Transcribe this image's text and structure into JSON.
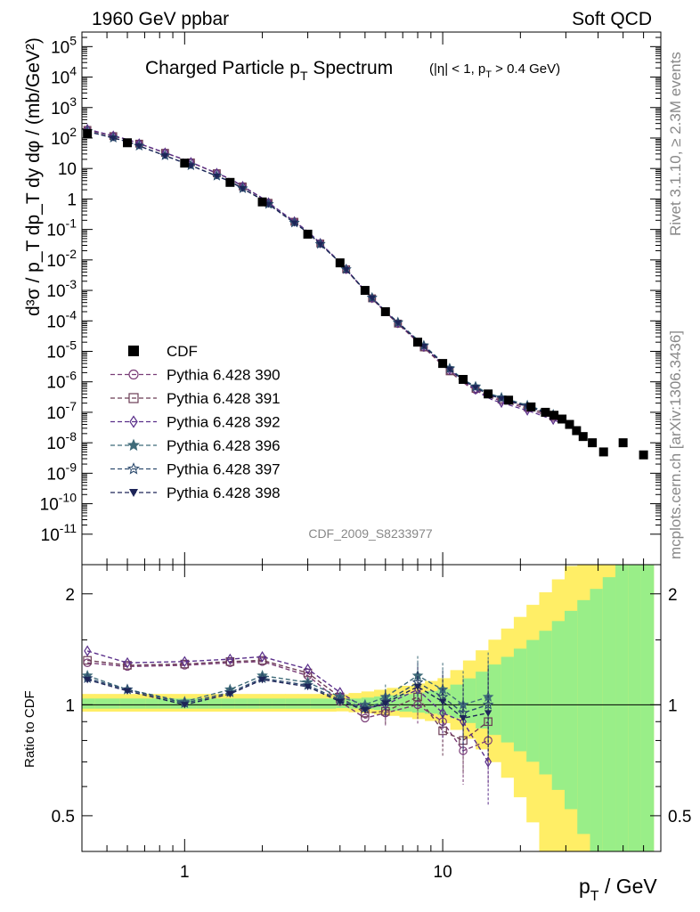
{
  "header": {
    "left": "1960 GeV ppbar",
    "right": "Soft QCD"
  },
  "side_labels": {
    "rivet": "Rivet 3.1.10, ≥ 2.3M events",
    "mcplots": "mcplots.cern.ch [arXiv:1306.3436]"
  },
  "plot_title": {
    "main": "Charged Particle p",
    "main_sub": "T",
    "main_tail": " Spectrum",
    "cut_a": "(|η| < 1, p",
    "cut_sub": "T",
    "cut_b": " > 0.4 GeV)"
  },
  "analysis_id": "CDF_2009_S8233977",
  "axes": {
    "ylabel_main": "d³σ / p_T dp_T dy dφ / (mb/GeV²)",
    "ylabel_ratio": "Ratio to CDF",
    "xlabel_a": "p",
    "xlabel_sub": "T",
    "xlabel_b": " / GeV"
  },
  "chart_data": [
    {
      "type": "scatter",
      "panel": "main",
      "x_scale": "log",
      "y_scale": "log",
      "xlim": [
        0.4,
        70
      ],
      "ylim": [
        1e-12,
        300000
      ],
      "x_ticklabels": [
        "1",
        "10"
      ],
      "y_ticklabels": [
        "10^-11",
        "10^-10",
        "10^-9",
        "10^-8",
        "10^-7",
        "10^-6",
        "10^-5",
        "10^-4",
        "10^-3",
        "10^-2",
        "10^-1",
        "1",
        "10",
        "10^2",
        "10^3",
        "10^4",
        "10^5"
      ],
      "legend_position": "bottom-left",
      "series": [
        {
          "name": "CDF",
          "color": "#000000",
          "marker": "filled-square",
          "x": [
            0.42,
            0.6,
            1.0,
            1.5,
            2.0,
            3.0,
            4.0,
            5.0,
            6.0,
            8.0,
            10.0,
            12.0,
            15.0,
            18.0,
            22.0,
            25.0,
            27.0,
            29.0,
            31.0,
            33.0,
            35.0,
            38.0,
            42.0,
            50.0,
            60.0
          ],
          "y": [
            140,
            70,
            15,
            3.5,
            0.8,
            0.07,
            0.008,
            0.001,
            0.0002,
            2e-05,
            4e-06,
            1.2e-06,
            4e-07,
            2.5e-07,
            1.5e-07,
            1e-07,
            8e-08,
            6e-08,
            4e-08,
            2.5e-08,
            1.6e-08,
            1e-08,
            5e-09,
            1e-08,
            4e-09
          ]
        },
        {
          "name": "Pythia 6.428 390",
          "color": "#7a3d77",
          "marker": "open-circle"
        },
        {
          "name": "Pythia 6.428 391",
          "color": "#6b3c55",
          "marker": "open-square"
        },
        {
          "name": "Pythia 6.428 392",
          "color": "#5a2f8a",
          "marker": "open-diamond"
        },
        {
          "name": "Pythia 6.428 396",
          "color": "#3f6b79",
          "marker": "filled-star"
        },
        {
          "name": "Pythia 6.428 397",
          "color": "#2e4c6f",
          "marker": "open-star"
        },
        {
          "name": "Pythia 6.428 398",
          "color": "#1d2458",
          "marker": "filled-triangle-down"
        }
      ]
    },
    {
      "type": "line",
      "panel": "ratio",
      "x_scale": "log",
      "y_scale": "log",
      "xlim": [
        0.4,
        70
      ],
      "ylim": [
        0.4,
        2.4
      ],
      "x_ticklabels": [
        "1",
        "10"
      ],
      "y_ticklabels": [
        "0.5",
        "1",
        "2"
      ],
      "reference_line": 1,
      "band_colors": {
        "inner": "#99ee88",
        "outer": "#ffee66"
      },
      "series": [
        {
          "name": "Pythia 6.428 390",
          "x": [
            0.42,
            0.6,
            1.0,
            1.5,
            2.0,
            3.0,
            4.0,
            5.0,
            6.0,
            8.0,
            10.0,
            12.0,
            15.0
          ],
          "y": [
            1.3,
            1.27,
            1.28,
            1.3,
            1.31,
            1.2,
            1.02,
            0.92,
            0.95,
            1.0,
            0.9,
            0.75,
            0.8
          ]
        },
        {
          "name": "Pythia 6.428 391",
          "x": [
            0.42,
            0.6,
            1.0,
            1.5,
            2.0,
            3.0,
            4.0,
            5.0,
            6.0,
            8.0,
            10.0,
            12.0,
            15.0
          ],
          "y": [
            1.32,
            1.28,
            1.29,
            1.31,
            1.32,
            1.22,
            1.05,
            0.95,
            0.96,
            1.05,
            0.85,
            0.8,
            0.9
          ]
        },
        {
          "name": "Pythia 6.428 392",
          "x": [
            0.42,
            0.6,
            1.0,
            1.5,
            2.0,
            3.0,
            4.0,
            5.0,
            6.0,
            8.0,
            10.0,
            12.0,
            15.0
          ],
          "y": [
            1.4,
            1.3,
            1.31,
            1.33,
            1.35,
            1.25,
            1.08,
            0.98,
            1.0,
            1.1,
            0.95,
            0.9,
            0.7
          ]
        },
        {
          "name": "Pythia 6.428 396",
          "x": [
            0.42,
            0.6,
            1.0,
            1.5,
            2.0,
            3.0,
            4.0,
            5.0,
            6.0,
            8.0,
            10.0,
            12.0,
            15.0
          ],
          "y": [
            1.2,
            1.1,
            1.02,
            1.1,
            1.2,
            1.15,
            1.05,
            1.0,
            1.05,
            1.2,
            1.1,
            1.0,
            1.05
          ]
        },
        {
          "name": "Pythia 6.428 397",
          "x": [
            0.42,
            0.6,
            1.0,
            1.5,
            2.0,
            3.0,
            4.0,
            5.0,
            6.0,
            8.0,
            10.0,
            12.0,
            15.0
          ],
          "y": [
            1.18,
            1.1,
            1.01,
            1.08,
            1.18,
            1.13,
            1.03,
            0.98,
            1.02,
            1.15,
            1.05,
            0.95,
            1.0
          ]
        },
        {
          "name": "Pythia 6.428 398",
          "x": [
            0.42,
            0.6,
            1.0,
            1.5,
            2.0,
            3.0,
            4.0,
            5.0,
            6.0,
            8.0,
            10.0,
            12.0,
            15.0
          ],
          "y": [
            1.17,
            1.09,
            1.0,
            1.07,
            1.17,
            1.12,
            1.02,
            0.97,
            1.01,
            1.12,
            1.02,
            0.92,
            0.95
          ]
        }
      ]
    }
  ]
}
